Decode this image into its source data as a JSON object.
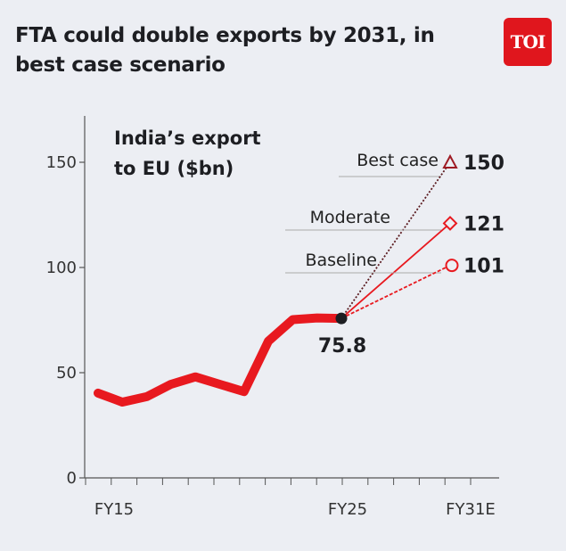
{
  "title": "FTA could double exports by 2031, in best case scenario",
  "logo_text": "TOI",
  "colors": {
    "background": "#eceef3",
    "line": "#e8191f",
    "best_case": "#9e1b24",
    "moderate": "#e8191f",
    "baseline": "#e8191f",
    "logo": "#e0161d"
  },
  "chart_data": {
    "type": "line",
    "title": "",
    "chart_label": [
      "India’s export",
      "to EU ($bn)"
    ],
    "ylim": [
      0,
      150
    ],
    "yticks": [
      0,
      50,
      100,
      150
    ],
    "xtick_labels": [
      "FY15",
      "FY25",
      "FY31E"
    ],
    "x": [
      "FY15",
      "FY16",
      "FY17",
      "FY18",
      "FY19",
      "FY20",
      "FY21",
      "FY22",
      "FY23",
      "FY24",
      "FY25"
    ],
    "values": [
      40.3,
      36,
      38.6,
      44.5,
      48,
      44.5,
      41,
      65,
      75.2,
      76,
      75.8
    ],
    "last_value_label": "75.8",
    "projections": [
      {
        "name": "Best case",
        "x": "FY31E",
        "value": 150,
        "label": "150",
        "marker": "triangle",
        "style": "dotted"
      },
      {
        "name": "Moderate",
        "x": "FY31E",
        "value": 121,
        "label": "121",
        "marker": "diamond",
        "style": "solid"
      },
      {
        "name": "Baseline",
        "x": "FY31E",
        "value": 101,
        "label": "101",
        "marker": "circle",
        "style": "dashed"
      }
    ],
    "grid": false
  }
}
